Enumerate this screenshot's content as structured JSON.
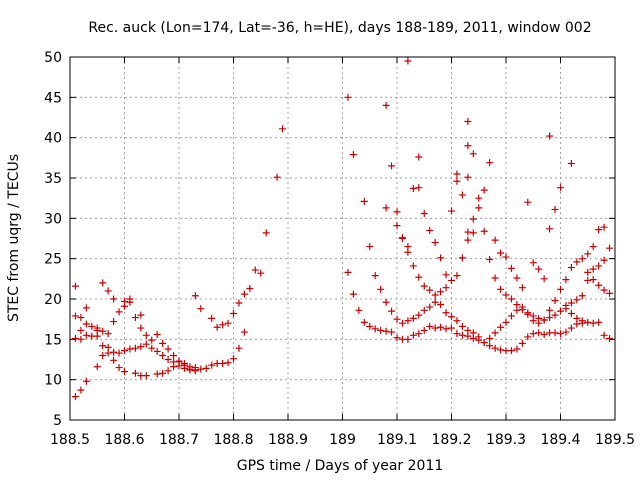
{
  "chart_data": {
    "type": "scatter",
    "title": "Rec. auck (Lon=174, Lat=-36, h=HE), days 188-189, 2011, window 002",
    "xlabel": "GPS time / Days of year 2011",
    "ylabel": "STEC from uqrg / TECUs",
    "xlim": [
      188.5,
      189.5
    ],
    "ylim": [
      5,
      50
    ],
    "xticks": [
      188.5,
      188.6,
      188.7,
      188.8,
      188.9,
      189,
      189.1,
      189.2,
      189.3,
      189.4,
      189.5
    ],
    "xtick_labels": [
      "188.5",
      "188.6",
      "188.7",
      "188.8",
      "188.9",
      "189",
      "189.1",
      "189.2",
      "189.3",
      "189.4",
      "189.5"
    ],
    "yticks": [
      5,
      10,
      15,
      20,
      25,
      30,
      35,
      40,
      45,
      50
    ],
    "ytick_labels": [
      "5",
      "10",
      "15",
      "20",
      "25",
      "30",
      "35",
      "40",
      "45",
      "50"
    ],
    "grid": true,
    "marker": "+",
    "color": "#cc0000",
    "points": [
      [
        188.51,
        7.9
      ],
      [
        188.52,
        8.7
      ],
      [
        188.53,
        9.8
      ],
      [
        188.55,
        11.6
      ],
      [
        188.56,
        13.0
      ],
      [
        188.57,
        13.3
      ],
      [
        188.58,
        12.4
      ],
      [
        188.59,
        11.5
      ],
      [
        188.6,
        11.0
      ],
      [
        188.62,
        10.8
      ],
      [
        188.63,
        10.5
      ],
      [
        188.64,
        10.5
      ],
      [
        188.66,
        10.7
      ],
      [
        188.67,
        10.8
      ],
      [
        188.68,
        11.1
      ],
      [
        188.69,
        11.6
      ],
      [
        188.7,
        11.7
      ],
      [
        188.71,
        11.4
      ],
      [
        188.72,
        11.2
      ],
      [
        188.73,
        11.2
      ],
      [
        188.74,
        11.3
      ],
      [
        188.75,
        11.4
      ],
      [
        188.76,
        11.8
      ],
      [
        188.77,
        12.0
      ],
      [
        188.78,
        12.0
      ],
      [
        188.79,
        12.1
      ],
      [
        188.8,
        12.6
      ],
      [
        188.81,
        13.9
      ],
      [
        188.82,
        15.9
      ],
      [
        188.51,
        15.1
      ],
      [
        188.52,
        15.0
      ],
      [
        188.53,
        15.5
      ],
      [
        188.54,
        15.4
      ],
      [
        188.55,
        15.4
      ],
      [
        188.56,
        14.2
      ],
      [
        188.57,
        14.0
      ],
      [
        188.58,
        13.4
      ],
      [
        188.59,
        13.3
      ],
      [
        188.6,
        13.6
      ],
      [
        188.61,
        13.8
      ],
      [
        188.62,
        13.9
      ],
      [
        188.63,
        14.1
      ],
      [
        188.64,
        14.4
      ],
      [
        188.65,
        13.9
      ],
      [
        188.66,
        13.5
      ],
      [
        188.67,
        13.0
      ],
      [
        188.68,
        12.5
      ],
      [
        188.69,
        12.2
      ],
      [
        188.7,
        12.3
      ],
      [
        188.71,
        12.0
      ],
      [
        188.72,
        11.6
      ],
      [
        188.73,
        11.5
      ],
      [
        188.51,
        21.6
      ],
      [
        188.51,
        17.9
      ],
      [
        188.52,
        17.7
      ],
      [
        188.53,
        18.9
      ],
      [
        188.54,
        16.6
      ],
      [
        188.55,
        16.4
      ],
      [
        188.56,
        16.0
      ],
      [
        188.57,
        15.7
      ],
      [
        188.58,
        17.2
      ],
      [
        188.59,
        18.4
      ],
      [
        188.6,
        19.1
      ],
      [
        188.61,
        19.6
      ],
      [
        188.62,
        17.7
      ],
      [
        188.63,
        16.4
      ],
      [
        188.64,
        15.5
      ],
      [
        188.65,
        14.9
      ],
      [
        188.66,
        15.6
      ],
      [
        188.67,
        14.5
      ],
      [
        188.68,
        13.8
      ],
      [
        188.69,
        13.0
      ],
      [
        188.7,
        12.2
      ],
      [
        188.71,
        11.8
      ],
      [
        188.72,
        11.3
      ],
      [
        188.73,
        11.1
      ],
      [
        188.52,
        16.1
      ],
      [
        188.53,
        16.9
      ],
      [
        188.55,
        16.1
      ],
      [
        188.56,
        22.0
      ],
      [
        188.57,
        21.0
      ],
      [
        188.58,
        20.0
      ],
      [
        188.6,
        19.7
      ],
      [
        188.61,
        20.0
      ],
      [
        188.63,
        18.0
      ],
      [
        188.73,
        20.4
      ],
      [
        188.74,
        18.8
      ],
      [
        188.76,
        17.6
      ],
      [
        188.77,
        16.5
      ],
      [
        188.78,
        16.8
      ],
      [
        188.79,
        17.0
      ],
      [
        188.8,
        18.2
      ],
      [
        188.81,
        19.5
      ],
      [
        188.82,
        20.6
      ],
      [
        188.83,
        21.3
      ],
      [
        188.84,
        23.6
      ],
      [
        188.85,
        23.2
      ],
      [
        188.86,
        28.2
      ],
      [
        188.88,
        35.1
      ],
      [
        188.89,
        41.1
      ],
      [
        189.01,
        45.0
      ],
      [
        189.02,
        37.9
      ],
      [
        189.08,
        44.0
      ],
      [
        189.12,
        49.5
      ],
      [
        189.23,
        42.0
      ],
      [
        189.23,
        39.0
      ],
      [
        189.24,
        38.0
      ],
      [
        189.14,
        37.6
      ],
      [
        189.21,
        35.5
      ],
      [
        189.23,
        35.1
      ],
      [
        189.38,
        40.2
      ],
      [
        189.42,
        36.8
      ],
      [
        189.01,
        23.3
      ],
      [
        189.02,
        20.6
      ],
      [
        189.03,
        18.6
      ],
      [
        189.04,
        17.1
      ],
      [
        189.05,
        16.6
      ],
      [
        189.06,
        16.3
      ],
      [
        189.07,
        16.1
      ],
      [
        189.08,
        16.0
      ],
      [
        189.09,
        15.9
      ],
      [
        189.1,
        15.2
      ],
      [
        189.11,
        15.0
      ],
      [
        189.12,
        15.0
      ],
      [
        189.13,
        15.5
      ],
      [
        189.14,
        15.7
      ],
      [
        189.15,
        16.1
      ],
      [
        189.16,
        16.6
      ],
      [
        189.17,
        16.4
      ],
      [
        189.18,
        16.5
      ],
      [
        189.19,
        16.3
      ],
      [
        189.2,
        16.4
      ],
      [
        189.21,
        15.7
      ],
      [
        189.22,
        15.5
      ],
      [
        189.23,
        15.4
      ],
      [
        189.24,
        15.1
      ],
      [
        189.25,
        14.9
      ],
      [
        189.26,
        14.6
      ],
      [
        189.27,
        14.2
      ],
      [
        189.28,
        13.9
      ],
      [
        189.29,
        13.7
      ],
      [
        189.3,
        13.6
      ],
      [
        189.31,
        13.6
      ],
      [
        189.32,
        13.8
      ],
      [
        189.33,
        14.5
      ],
      [
        189.34,
        15.3
      ],
      [
        189.35,
        15.7
      ],
      [
        189.36,
        15.8
      ],
      [
        189.37,
        15.6
      ],
      [
        189.38,
        15.8
      ],
      [
        189.39,
        15.8
      ],
      [
        189.4,
        15.7
      ],
      [
        189.41,
        15.9
      ],
      [
        189.42,
        16.4
      ],
      [
        189.43,
        16.9
      ],
      [
        189.44,
        17.3
      ],
      [
        189.45,
        17.1
      ],
      [
        189.46,
        17.0
      ],
      [
        189.47,
        17.1
      ],
      [
        189.48,
        15.5
      ],
      [
        189.49,
        15.1
      ],
      [
        189.04,
        32.1
      ],
      [
        189.05,
        26.5
      ],
      [
        189.06,
        22.9
      ],
      [
        189.07,
        21.2
      ],
      [
        189.08,
        19.6
      ],
      [
        189.09,
        18.5
      ],
      [
        189.1,
        17.5
      ],
      [
        189.11,
        17.0
      ],
      [
        189.12,
        17.3
      ],
      [
        189.13,
        17.6
      ],
      [
        189.14,
        18.0
      ],
      [
        189.15,
        18.6
      ],
      [
        189.16,
        19.0
      ],
      [
        189.17,
        19.6
      ],
      [
        189.18,
        19.3
      ],
      [
        189.19,
        18.3
      ],
      [
        189.2,
        17.8
      ],
      [
        189.21,
        17.3
      ],
      [
        189.22,
        16.6
      ],
      [
        189.23,
        16.1
      ],
      [
        189.24,
        15.8
      ],
      [
        189.25,
        15.3
      ],
      [
        189.26,
        14.6
      ],
      [
        189.27,
        15.1
      ],
      [
        189.28,
        15.8
      ],
      [
        189.29,
        16.5
      ],
      [
        189.3,
        17.1
      ],
      [
        189.31,
        17.9
      ],
      [
        189.32,
        18.6
      ],
      [
        189.33,
        19.0
      ],
      [
        189.34,
        18.3
      ],
      [
        189.35,
        17.9
      ],
      [
        189.36,
        17.6
      ],
      [
        189.37,
        17.4
      ],
      [
        189.38,
        17.7
      ],
      [
        189.39,
        18.0
      ],
      [
        189.4,
        18.5
      ],
      [
        189.41,
        19.2
      ],
      [
        189.42,
        19.5
      ],
      [
        189.43,
        19.9
      ],
      [
        189.44,
        20.4
      ],
      [
        189.45,
        22.3
      ],
      [
        189.46,
        23.7
      ],
      [
        189.47,
        24.1
      ],
      [
        189.48,
        24.8
      ],
      [
        189.49,
        26.3
      ],
      [
        189.08,
        31.3
      ],
      [
        189.09,
        36.5
      ],
      [
        189.1,
        30.8
      ],
      [
        189.11,
        27.5
      ],
      [
        189.12,
        25.8
      ],
      [
        189.13,
        24.1
      ],
      [
        189.14,
        22.7
      ],
      [
        189.15,
        21.6
      ],
      [
        189.16,
        21.1
      ],
      [
        189.17,
        20.5
      ],
      [
        189.18,
        20.9
      ],
      [
        189.19,
        21.4
      ],
      [
        189.2,
        22.3
      ],
      [
        189.21,
        22.9
      ],
      [
        189.22,
        25.1
      ],
      [
        189.23,
        27.3
      ],
      [
        189.24,
        29.9
      ],
      [
        189.25,
        32.5
      ],
      [
        189.26,
        28.4
      ],
      [
        189.27,
        24.9
      ],
      [
        189.28,
        22.6
      ],
      [
        189.29,
        21.2
      ],
      [
        189.3,
        20.5
      ],
      [
        189.31,
        20.0
      ],
      [
        189.32,
        19.3
      ],
      [
        189.33,
        18.7
      ],
      [
        189.34,
        18.1
      ],
      [
        189.35,
        17.3
      ],
      [
        189.36,
        17.0
      ],
      [
        189.37,
        17.4
      ],
      [
        189.38,
        18.6
      ],
      [
        189.39,
        19.8
      ],
      [
        189.4,
        21.2
      ],
      [
        189.41,
        22.4
      ],
      [
        189.42,
        23.9
      ],
      [
        189.43,
        24.6
      ],
      [
        189.44,
        25.0
      ],
      [
        189.45,
        25.6
      ],
      [
        189.46,
        26.5
      ],
      [
        189.47,
        28.6
      ],
      [
        189.48,
        28.9
      ],
      [
        189.1,
        29.1
      ],
      [
        189.11,
        27.6
      ],
      [
        189.12,
        26.5
      ],
      [
        189.13,
        33.7
      ],
      [
        189.14,
        33.8
      ],
      [
        189.15,
        30.6
      ],
      [
        189.16,
        28.5
      ],
      [
        189.17,
        27.0
      ],
      [
        189.18,
        25.1
      ],
      [
        189.19,
        23.0
      ],
      [
        189.2,
        30.9
      ],
      [
        189.21,
        34.6
      ],
      [
        189.22,
        32.9
      ],
      [
        189.23,
        28.3
      ],
      [
        189.24,
        28.2
      ],
      [
        189.25,
        31.3
      ],
      [
        189.26,
        33.5
      ],
      [
        189.27,
        36.9
      ],
      [
        189.28,
        27.3
      ],
      [
        189.29,
        25.7
      ],
      [
        189.3,
        25.2
      ],
      [
        189.31,
        23.8
      ],
      [
        189.32,
        22.6
      ],
      [
        189.33,
        21.4
      ],
      [
        189.34,
        32.0
      ],
      [
        189.35,
        24.5
      ],
      [
        189.36,
        23.7
      ],
      [
        189.37,
        22.5
      ],
      [
        189.38,
        28.7
      ],
      [
        189.39,
        31.1
      ],
      [
        189.4,
        33.8
      ],
      [
        189.41,
        18.8
      ],
      [
        189.42,
        18.2
      ],
      [
        189.43,
        17.6
      ],
      [
        189.44,
        17.0
      ],
      [
        189.45,
        23.3
      ],
      [
        189.46,
        22.4
      ],
      [
        189.47,
        21.7
      ],
      [
        189.48,
        21.1
      ],
      [
        189.49,
        20.7
      ]
    ]
  }
}
